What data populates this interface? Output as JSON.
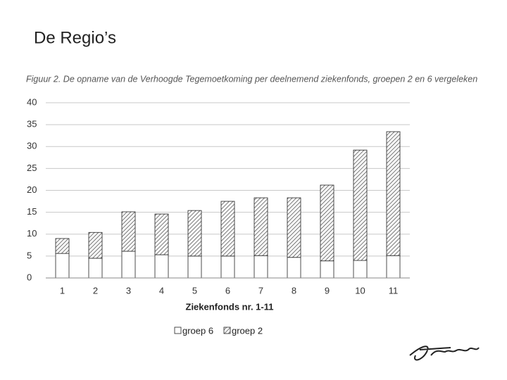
{
  "slide_title": "De Regio’s",
  "chart_data": {
    "type": "stacked_bar",
    "title": "Figuur 2. De opname van de Verhoogde Tegemoetkoming per deelnemend ziekenfonds, groepen 2 en 6 vergeleken",
    "x_label": "Ziekenfonds nr. 1-11",
    "categories": [
      "1",
      "2",
      "3",
      "4",
      "5",
      "6",
      "7",
      "8",
      "9",
      "10",
      "11"
    ],
    "series": [
      {
        "name": "groep 6",
        "color": "#ffffff",
        "values": [
          5.6,
          4.5,
          6.1,
          5.3,
          5.0,
          5.0,
          5.1,
          4.7,
          3.9,
          4.0,
          5.1
        ]
      },
      {
        "name": "groep 2",
        "color": "#555555",
        "values": [
          3.4,
          5.9,
          9.0,
          9.3,
          10.4,
          12.5,
          13.2,
          13.6,
          17.3,
          25.2,
          28.3
        ]
      }
    ],
    "ylim": [
      0,
      40
    ],
    "yticks": [
      0,
      5,
      10,
      15,
      20,
      25,
      30,
      35,
      40
    ],
    "grid": true,
    "legend": "bottom"
  }
}
